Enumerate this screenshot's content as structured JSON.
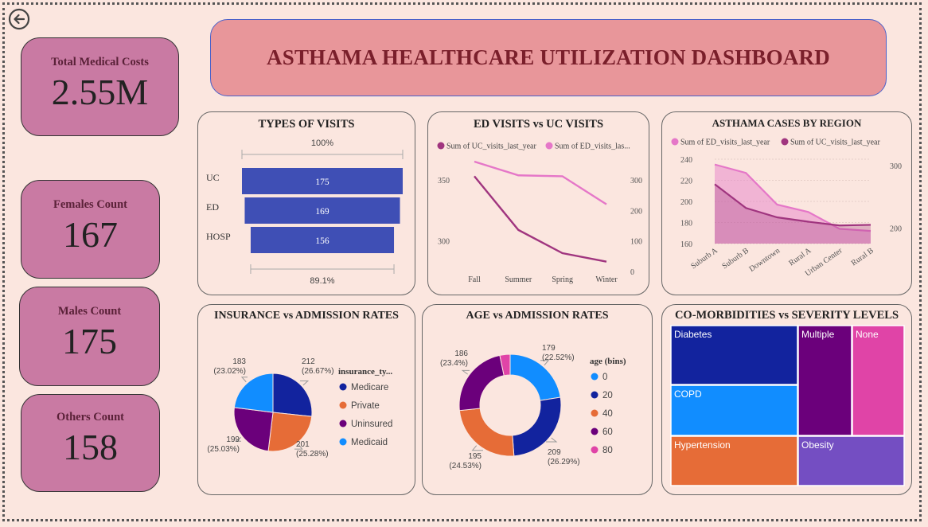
{
  "dashboard": {
    "title": "ASTHAMA HEALTHCARE UTILIZATION DASHBOARD"
  },
  "kpis": [
    {
      "label": "Total Medical Costs",
      "value": "2.55M"
    },
    {
      "label": "Females Count",
      "value": "167"
    },
    {
      "label": "Males Count",
      "value": "175"
    },
    {
      "label": "Others Count",
      "value": "158"
    }
  ],
  "panels": {
    "types_of_visits": "TYPES OF VISITS",
    "ed_vs_uc": "ED VISITS vs UC VISITS",
    "cases_by_region": "ASTHAMA CASES BY REGION",
    "insurance": "INSURANCE vs ADMISSION RATES",
    "age": "AGE vs ADMISSION RATES",
    "comorbid": "CO-MORBIDITIES vs SEVERITY LEVELS"
  },
  "colors": {
    "funnel": "#3f4fb5",
    "line_dark": "#a0357f",
    "line_light": "#e577c8",
    "pie": [
      "#12239e",
      "#e66c37",
      "#6b007b",
      "#118dff",
      "#e044a7"
    ]
  },
  "chart_data": [
    {
      "id": "types_of_visits",
      "type": "bar",
      "subtype": "funnel",
      "categories": [
        "UC",
        "ED",
        "HOSP"
      ],
      "values": [
        175,
        169,
        156
      ],
      "top_label": "100%",
      "bottom_label": "89.1%"
    },
    {
      "id": "ed_vs_uc",
      "type": "line",
      "x": [
        "Fall",
        "Summer",
        "Spring",
        "Winter"
      ],
      "series": [
        {
          "name": "Sum of UC_visits_last_year",
          "axis": "left",
          "values": [
            353,
            309,
            290,
            283
          ]
        },
        {
          "name": "Sum of ED_visits_las...",
          "axis": "right",
          "values": [
            360,
            315,
            312,
            220
          ]
        }
      ],
      "left_ticks": [
        "350",
        "300"
      ],
      "right_ticks": [
        "300",
        "200",
        "100",
        "0"
      ],
      "left_ylim": [
        275,
        365
      ],
      "right_ylim": [
        0,
        360
      ]
    },
    {
      "id": "cases_by_region",
      "type": "area",
      "x": [
        "Suburb A",
        "Suburb B",
        "Downtown",
        "Rural A",
        "Urban Center",
        "Rural B"
      ],
      "series": [
        {
          "name": "Sum of ED_visits_last_year",
          "axis": "left",
          "values": [
            235,
            227,
            197,
            190,
            174,
            172
          ]
        },
        {
          "name": "Sum of UC_visits_last_year",
          "axis": "right",
          "values": [
            270,
            232,
            217,
            210,
            204,
            205
          ]
        }
      ],
      "left_ticks": [
        "240",
        "220",
        "200",
        "180",
        "160"
      ],
      "right_ticks": [
        "300",
        "200"
      ],
      "left_ylim": [
        160,
        240
      ],
      "right_ylim": [
        175,
        310
      ]
    },
    {
      "id": "insurance",
      "type": "pie",
      "legend_title": "insurance_ty...",
      "labels": [
        "Medicare",
        "Private",
        "Uninsured",
        "Medicaid"
      ],
      "values": [
        212,
        201,
        199,
        183
      ],
      "pct_labels": [
        "(26.67%)",
        "(25.28%)",
        "(25.03%)",
        "(23.02%)"
      ]
    },
    {
      "id": "age",
      "type": "pie",
      "subtype": "donut",
      "legend_title": "age (bins)",
      "labels": [
        "0",
        "20",
        "40",
        "60",
        "80"
      ],
      "values": [
        179,
        209,
        195,
        186,
        26
      ],
      "pct_labels": [
        "(22.52%)",
        "(26.29%)",
        "(24.53%)",
        "(23.4%)",
        ""
      ]
    },
    {
      "id": "comorbid",
      "type": "heatmap",
      "subtype": "treemap",
      "labels": [
        "Diabetes",
        "COPD",
        "Hypertension",
        "Multiple",
        "None",
        "Obesity"
      ]
    }
  ]
}
